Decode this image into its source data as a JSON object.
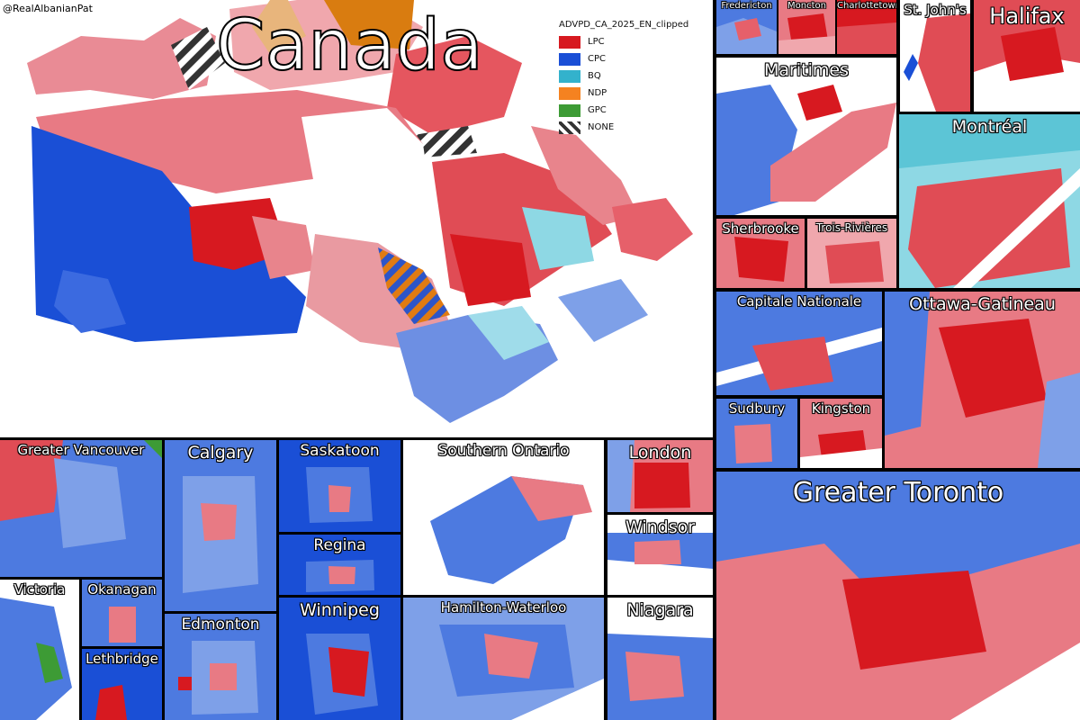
{
  "credit": "@RealAlbanianPat",
  "main_title": "Canada",
  "legend": {
    "title": "ADVPD_CA_2025_EN_clipped",
    "items": [
      {
        "label": "LPC",
        "color": "#d71920"
      },
      {
        "label": "CPC",
        "color": "#1a4fd6"
      },
      {
        "label": "BQ",
        "color": "#33b2cc"
      },
      {
        "label": "NDP",
        "color": "#f58220"
      },
      {
        "label": "GPC",
        "color": "#3d9b35"
      },
      {
        "label": "NONE",
        "color": "#333333"
      }
    ]
  },
  "panels": {
    "fredericton": "Fredericton",
    "moncton": "Moncton",
    "charlottetown": "Charlottetown",
    "st_johns": "St. John's",
    "halifax": "Halifax",
    "maritimes": "Maritimes",
    "montreal": "Montréal",
    "sherbrooke": "Sherbrooke",
    "trois_rivieres": "Trois-Rivières",
    "capitale_nationale": "Capitale Nationale",
    "ottawa_gatineau": "Ottawa-Gatineau",
    "sudbury": "Sudbury",
    "kingston": "Kingston",
    "greater_vancouver": "Greater Vancouver",
    "calgary": "Calgary",
    "saskatoon": "Saskatoon",
    "southern_ontario": "Southern Ontario",
    "london": "London",
    "regina": "Regina",
    "windsor": "Windsor",
    "greater_toronto": "Greater Toronto",
    "victoria": "Victoria",
    "okanagan": "Okanagan",
    "edmonton": "Edmonton",
    "winnipeg": "Winnipeg",
    "hamilton_waterloo": "Hamilton-Waterloo",
    "niagara": "Niagara",
    "lethbridge": "Lethbridge"
  }
}
